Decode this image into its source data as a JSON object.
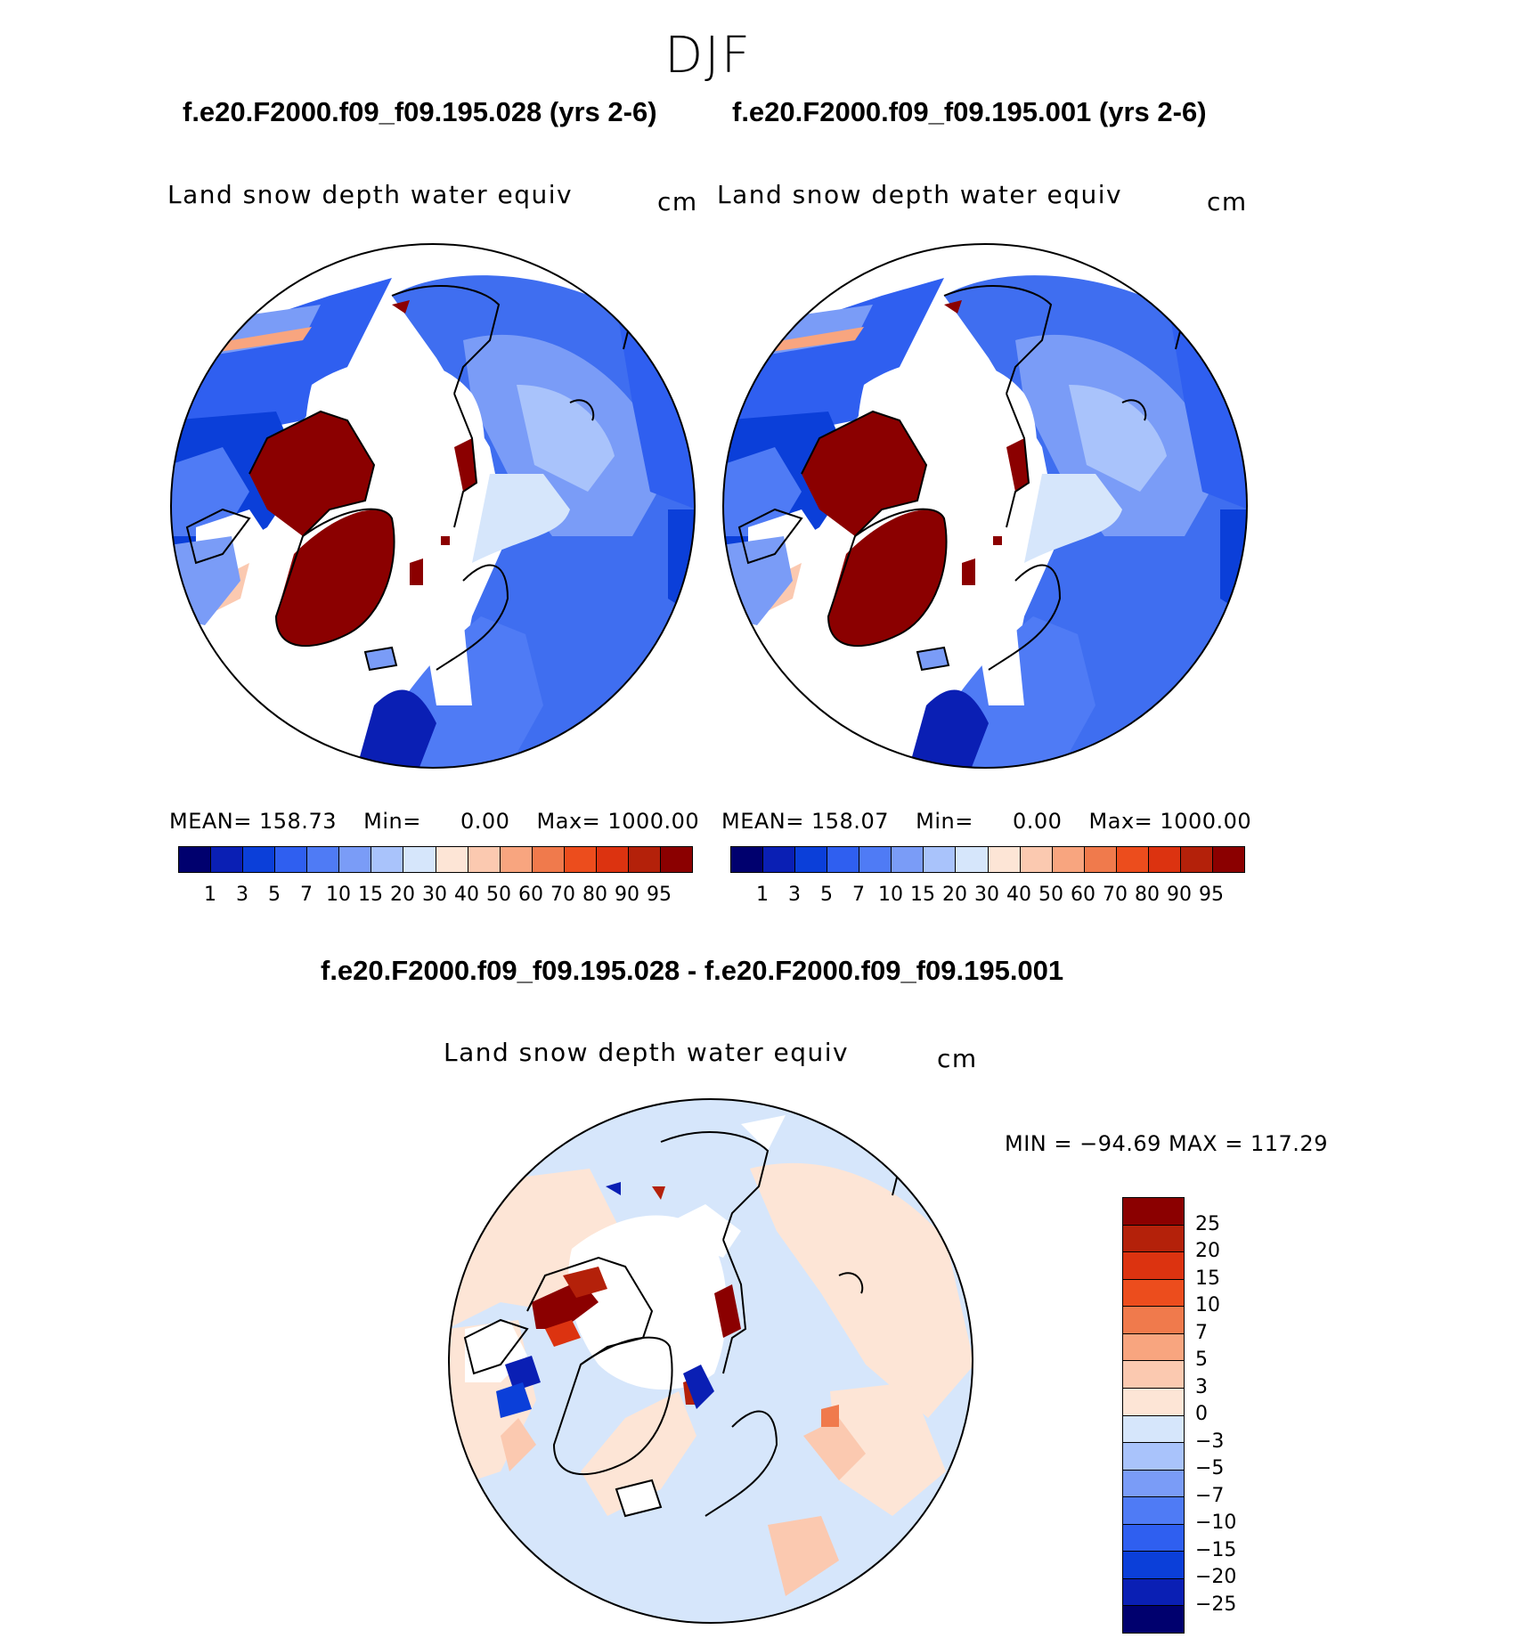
{
  "season": "DJF",
  "panels": [
    {
      "case_title": "f.e20.F2000.f09_f09.195.028 (yrs 2-6)",
      "variable": "Land snow depth water equiv",
      "units": "cm",
      "stats": {
        "mean_label": "MEAN=",
        "mean": "158.73",
        "min_label": "Min=",
        "min": "0.00",
        "max_label": "Max=",
        "max": "1000.00"
      }
    },
    {
      "case_title": "f.e20.F2000.f09_f09.195.001 (yrs 2-6)",
      "variable": "Land snow depth water equiv",
      "units": "cm",
      "stats": {
        "mean_label": "MEAN=",
        "mean": "158.07",
        "min_label": "Min=",
        "min": "0.00",
        "max_label": "Max=",
        "max": "1000.00"
      }
    }
  ],
  "abs_colorbar": {
    "colors": [
      "#00006e",
      "#0a1fb4",
      "#0b3fd9",
      "#2f5ff0",
      "#4f7bf5",
      "#7a9cf7",
      "#a9c3fb",
      "#d6e6fb",
      "#fde5d6",
      "#fbc9b0",
      "#f8a57f",
      "#f07a4c",
      "#ec4d1d",
      "#dc3310",
      "#b4210a",
      "#8b0000"
    ],
    "ticks": [
      "1",
      "3",
      "5",
      "7",
      "10",
      "15",
      "20",
      "30",
      "40",
      "50",
      "60",
      "70",
      "80",
      "90",
      "95"
    ]
  },
  "difference": {
    "title": "f.e20.F2000.f09_f09.195.028 - f.e20.F2000.f09_f09.195.001",
    "variable": "Land snow depth water equiv",
    "units": "cm",
    "minmax": "MIN = −94.69 MAX = 117.29",
    "colorbar": {
      "colors": [
        "#8b0000",
        "#b4210a",
        "#dc3310",
        "#ec4d1d",
        "#f07a4c",
        "#f8a57f",
        "#fbc9b0",
        "#fde5d6",
        "#d6e6fb",
        "#a9c3fb",
        "#7a9cf7",
        "#4f7bf5",
        "#2f5ff0",
        "#0b3fd9",
        "#0a1fb4",
        "#00006e"
      ],
      "ticks": [
        "25",
        "20",
        "15",
        "10",
        "7",
        "5",
        "3",
        "0",
        "−3",
        "−5",
        "−7",
        "−10",
        "−15",
        "−20",
        "−25"
      ]
    }
  }
}
